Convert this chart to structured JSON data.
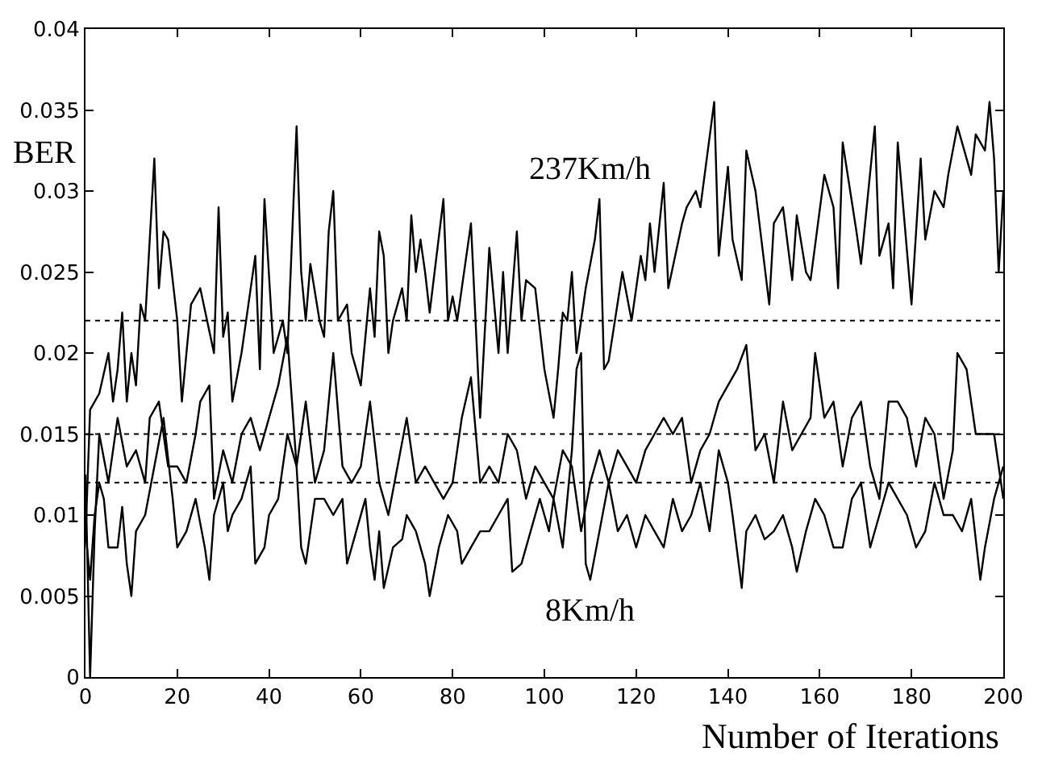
{
  "chart_data": {
    "type": "line",
    "xlabel": "Number of Iterations",
    "ylabel": "BER",
    "xlim": [
      0,
      200
    ],
    "xticks": [
      0,
      20,
      40,
      60,
      80,
      100,
      120,
      140,
      160,
      180,
      200
    ],
    "ylim": [
      0,
      0.04
    ],
    "yticks": [
      0,
      0.005,
      0.01,
      0.015,
      0.02,
      0.025,
      0.03,
      0.035,
      0.04
    ],
    "grid": false,
    "legend": false,
    "marker": "none",
    "line_style": "solid",
    "ref_lines": [
      {
        "axis": "y",
        "value": 0.022,
        "color": "#000000",
        "line_style": "dotted"
      },
      {
        "axis": "y",
        "value": 0.015,
        "color": "#000000",
        "line_style": "dotted"
      },
      {
        "axis": "y",
        "value": 0.012,
        "color": "#000000",
        "line_style": "dotted"
      }
    ],
    "series": [
      {
        "name": "237Km/h",
        "color": "#000000",
        "x": [
          0,
          1,
          3,
          5,
          6,
          7,
          8,
          9,
          10,
          11,
          12,
          13,
          15,
          16,
          17,
          18,
          20,
          21,
          22,
          23,
          25,
          28,
          29,
          30,
          31,
          32,
          34,
          35,
          37,
          38,
          39,
          41,
          43,
          44,
          46,
          47,
          48,
          49,
          51,
          52,
          53,
          54,
          55,
          57,
          58,
          60,
          62,
          63,
          64,
          65,
          66,
          67,
          69,
          70,
          71,
          72,
          73,
          74,
          75,
          78,
          79,
          80,
          81,
          82,
          84,
          86,
          88,
          90,
          91,
          92,
          94,
          95,
          96,
          98,
          100,
          102,
          103,
          104,
          105,
          106,
          107,
          109,
          111,
          112,
          113,
          114,
          117,
          119,
          121,
          122,
          123,
          124,
          126,
          127,
          130,
          131,
          133,
          134,
          137,
          138,
          140,
          141,
          143,
          144,
          146,
          149,
          150,
          152,
          154,
          155,
          157,
          158,
          161,
          163,
          164,
          165,
          168,
          169,
          172,
          173,
          175,
          176,
          177,
          180,
          182,
          183,
          185,
          187,
          188,
          190,
          191,
          193,
          194,
          196,
          197,
          198,
          199,
          200
        ],
        "values": [
          0.0085,
          0.0165,
          0.0175,
          0.02,
          0.017,
          0.019,
          0.0225,
          0.017,
          0.02,
          0.018,
          0.023,
          0.022,
          0.032,
          0.024,
          0.0275,
          0.027,
          0.022,
          0.017,
          0.02,
          0.023,
          0.024,
          0.02,
          0.029,
          0.021,
          0.0225,
          0.017,
          0.02,
          0.022,
          0.026,
          0.019,
          0.0295,
          0.02,
          0.022,
          0.02,
          0.034,
          0.025,
          0.022,
          0.0255,
          0.022,
          0.021,
          0.0275,
          0.03,
          0.022,
          0.023,
          0.02,
          0.018,
          0.024,
          0.021,
          0.0275,
          0.026,
          0.02,
          0.022,
          0.024,
          0.022,
          0.0285,
          0.025,
          0.027,
          0.025,
          0.0225,
          0.0295,
          0.022,
          0.0235,
          0.022,
          0.024,
          0.028,
          0.016,
          0.0265,
          0.02,
          0.025,
          0.02,
          0.0275,
          0.022,
          0.0245,
          0.024,
          0.019,
          0.016,
          0.019,
          0.0225,
          0.022,
          0.025,
          0.02,
          0.024,
          0.027,
          0.0295,
          0.019,
          0.0195,
          0.025,
          0.022,
          0.026,
          0.0245,
          0.028,
          0.025,
          0.0305,
          0.024,
          0.028,
          0.029,
          0.03,
          0.029,
          0.0355,
          0.026,
          0.0315,
          0.027,
          0.0245,
          0.0325,
          0.03,
          0.023,
          0.028,
          0.029,
          0.0245,
          0.0285,
          0.025,
          0.0245,
          0.031,
          0.029,
          0.024,
          0.033,
          0.0275,
          0.0255,
          0.034,
          0.026,
          0.028,
          0.024,
          0.033,
          0.023,
          0.032,
          0.027,
          0.03,
          0.029,
          0.031,
          0.034,
          0.033,
          0.031,
          0.0335,
          0.0325,
          0.0355,
          0.032,
          0.025,
          0.03
        ]
      },
      {
        "color": "#000000",
        "x": [
          0,
          1,
          2,
          3,
          5,
          7,
          9,
          11,
          13,
          14,
          16,
          18,
          20,
          22,
          24,
          25,
          27,
          28,
          30,
          32,
          34,
          36,
          38,
          40,
          42,
          44,
          46,
          48,
          50,
          52,
          54,
          56,
          58,
          60,
          62,
          64,
          66,
          68,
          70,
          72,
          74,
          76,
          78,
          80,
          82,
          84,
          86,
          88,
          90,
          92,
          94,
          96,
          98,
          100,
          102,
          104,
          106,
          108,
          110,
          112,
          114,
          116,
          118,
          120,
          122,
          124,
          126,
          128,
          130,
          132,
          134,
          136,
          138,
          140,
          142,
          144,
          146,
          148,
          150,
          152,
          154,
          156,
          158,
          159,
          161,
          163,
          165,
          167,
          169,
          171,
          173,
          175,
          177,
          179,
          181,
          183,
          185,
          187,
          189,
          190,
          192,
          194,
          196,
          198,
          200
        ],
        "values": [
          0.0125,
          0.0,
          0.009,
          0.015,
          0.012,
          0.016,
          0.013,
          0.014,
          0.012,
          0.016,
          0.017,
          0.013,
          0.013,
          0.012,
          0.015,
          0.017,
          0.018,
          0.011,
          0.014,
          0.012,
          0.015,
          0.016,
          0.014,
          0.016,
          0.018,
          0.021,
          0.013,
          0.017,
          0.012,
          0.014,
          0.02,
          0.013,
          0.012,
          0.013,
          0.017,
          0.012,
          0.01,
          0.013,
          0.016,
          0.012,
          0.013,
          0.012,
          0.011,
          0.012,
          0.016,
          0.0185,
          0.012,
          0.013,
          0.012,
          0.015,
          0.014,
          0.011,
          0.013,
          0.012,
          0.011,
          0.014,
          0.013,
          0.009,
          0.012,
          0.014,
          0.012,
          0.014,
          0.013,
          0.012,
          0.014,
          0.015,
          0.016,
          0.015,
          0.016,
          0.012,
          0.014,
          0.015,
          0.017,
          0.018,
          0.019,
          0.0205,
          0.014,
          0.015,
          0.012,
          0.017,
          0.014,
          0.015,
          0.016,
          0.02,
          0.016,
          0.017,
          0.013,
          0.016,
          0.017,
          0.013,
          0.011,
          0.017,
          0.017,
          0.016,
          0.013,
          0.016,
          0.015,
          0.011,
          0.014,
          0.02,
          0.019,
          0.015,
          0.015,
          0.015,
          0.011
        ]
      },
      {
        "name": "8Km/h",
        "color": "#000000",
        "x": [
          0,
          1,
          2,
          3,
          4,
          5,
          7,
          8,
          9,
          10,
          11,
          13,
          15,
          17,
          19,
          20,
          22,
          24,
          26,
          27,
          28,
          30,
          31,
          32,
          34,
          36,
          37,
          39,
          40,
          42,
          44,
          46,
          47,
          48,
          50,
          52,
          54,
          56,
          57,
          59,
          61,
          62,
          63,
          64,
          65,
          67,
          69,
          70,
          72,
          74,
          75,
          77,
          79,
          81,
          82,
          84,
          86,
          88,
          90,
          92,
          93,
          95,
          97,
          99,
          101,
          102,
          104,
          106,
          107,
          108,
          109,
          110,
          112,
          114,
          116,
          118,
          120,
          122,
          124,
          126,
          128,
          130,
          132,
          134,
          136,
          138,
          140,
          141,
          143,
          144,
          146,
          148,
          150,
          152,
          154,
          155,
          157,
          159,
          161,
          163,
          165,
          167,
          169,
          171,
          173,
          175,
          177,
          179,
          181,
          183,
          185,
          187,
          189,
          191,
          193,
          195,
          196,
          198,
          200
        ],
        "values": [
          0.009,
          0.006,
          0.01,
          0.012,
          0.011,
          0.008,
          0.008,
          0.0105,
          0.007,
          0.005,
          0.009,
          0.01,
          0.013,
          0.016,
          0.011,
          0.008,
          0.009,
          0.011,
          0.008,
          0.006,
          0.01,
          0.012,
          0.009,
          0.01,
          0.011,
          0.013,
          0.007,
          0.008,
          0.01,
          0.011,
          0.015,
          0.013,
          0.008,
          0.007,
          0.011,
          0.011,
          0.01,
          0.011,
          0.007,
          0.009,
          0.011,
          0.008,
          0.006,
          0.009,
          0.0055,
          0.008,
          0.0085,
          0.01,
          0.009,
          0.007,
          0.005,
          0.008,
          0.01,
          0.009,
          0.007,
          0.008,
          0.009,
          0.009,
          0.01,
          0.011,
          0.0065,
          0.007,
          0.009,
          0.011,
          0.009,
          0.011,
          0.008,
          0.014,
          0.019,
          0.02,
          0.007,
          0.006,
          0.009,
          0.012,
          0.009,
          0.01,
          0.008,
          0.01,
          0.009,
          0.008,
          0.011,
          0.009,
          0.01,
          0.012,
          0.009,
          0.014,
          0.012,
          0.01,
          0.0055,
          0.009,
          0.01,
          0.0085,
          0.009,
          0.01,
          0.008,
          0.0065,
          0.009,
          0.011,
          0.01,
          0.008,
          0.008,
          0.011,
          0.012,
          0.008,
          0.01,
          0.012,
          0.011,
          0.01,
          0.008,
          0.009,
          0.012,
          0.01,
          0.01,
          0.009,
          0.011,
          0.006,
          0.008,
          0.011,
          0.013
        ]
      }
    ]
  }
}
